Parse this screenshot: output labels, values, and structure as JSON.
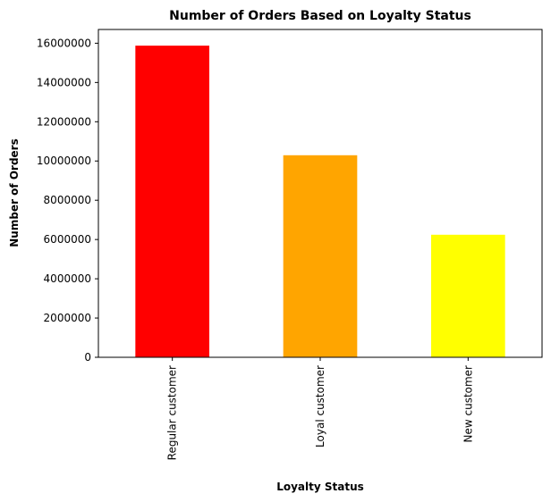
{
  "chart_data": {
    "type": "bar",
    "title": "Number of Orders Based on Loyalty Status",
    "xlabel": "Loyalty Status",
    "ylabel": "Number of Orders",
    "categories": [
      "Regular customer",
      "Loyal customer",
      "New customer"
    ],
    "values": [
      15876000,
      10293000,
      6243000
    ],
    "colors": [
      "#ff0000",
      "#ffa500",
      "#ffff00"
    ],
    "ylim": [
      0,
      16700000
    ],
    "yticks": [
      0,
      2000000,
      4000000,
      6000000,
      8000000,
      10000000,
      12000000,
      14000000,
      16000000
    ],
    "ytick_labels": [
      "0",
      "2000000",
      "4000000",
      "6000000",
      "8000000",
      "10000000",
      "12000000",
      "14000000",
      "16000000"
    ],
    "grid": false,
    "legend": false
  }
}
